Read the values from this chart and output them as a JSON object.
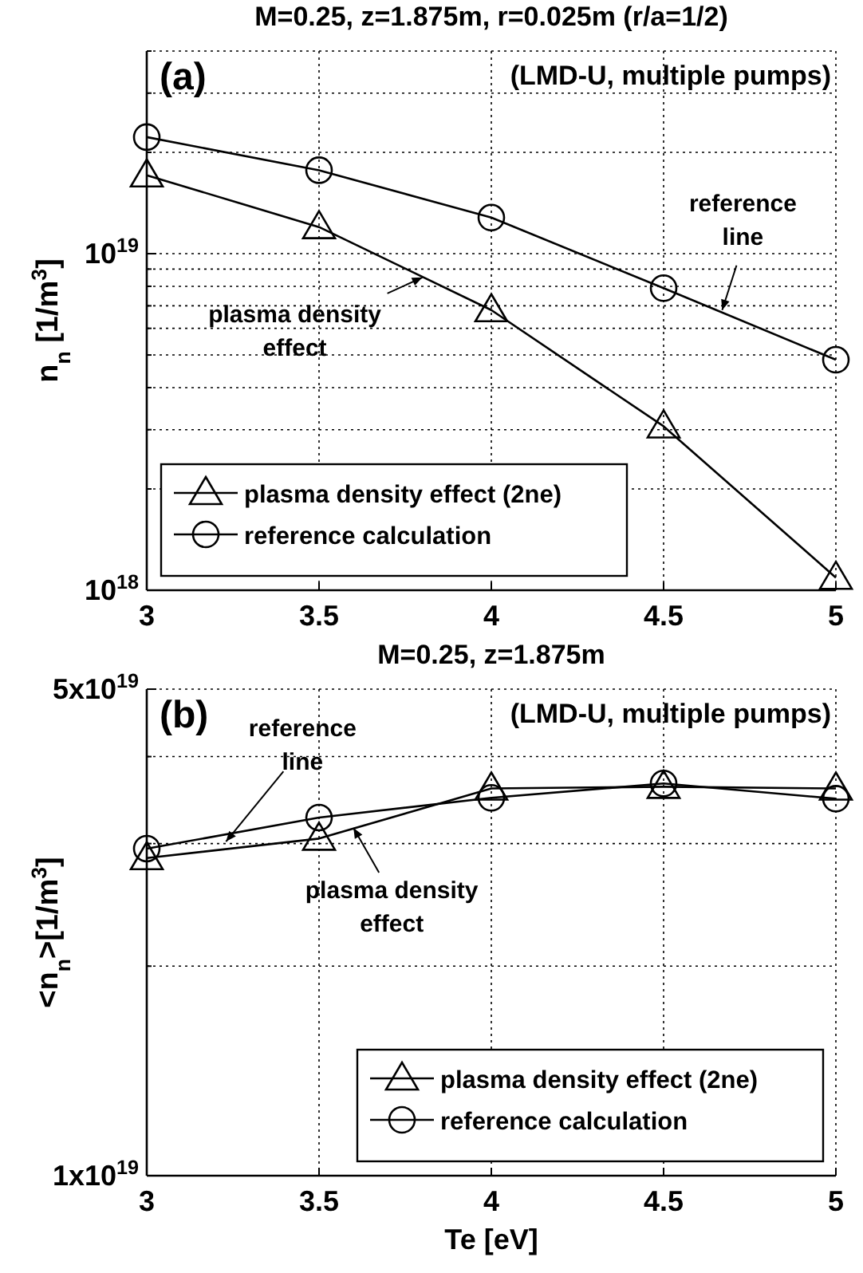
{
  "chart_data": [
    {
      "type": "line",
      "title": "M=0.25, z=1.875m, r=0.025m (r/a=1/2)",
      "subtitle": "(LMD-U, multiple pumps)",
      "ylabel": "n$_{n}$ [1/m$^{3}$]",
      "x": [
        3,
        3.5,
        4,
        4.5,
        5
      ],
      "series": [
        {
          "name": "plasma density effect (2ne)",
          "color": "#000000",
          "marker": "triangle",
          "values": [
            1.71e+19,
            1.2e+19,
            6.8e+18,
            3.07e+18,
            1.09e+18
          ]
        },
        {
          "name": "reference calculation",
          "color": "#000000",
          "marker": "circle",
          "values": [
            2.22e+19,
            1.77e+19,
            1.28e+19,
            7.9e+18,
            4.84e+18
          ]
        }
      ],
      "xlim": [
        3,
        5
      ],
      "xticks": [
        3,
        3.5,
        4,
        4.5,
        5
      ],
      "ylim": [
        1e+18,
        4e+19
      ],
      "yticks": [
        {
          "value": 1e+18,
          "label": "10$^{18}$"
        },
        {
          "value": 2e+18,
          "label": null
        },
        {
          "value": 3e+18,
          "label": null
        },
        {
          "value": 4e+18,
          "label": null
        },
        {
          "value": 5e+18,
          "label": null
        },
        {
          "value": 6e+18,
          "label": null
        },
        {
          "value": 7e+18,
          "label": null
        },
        {
          "value": 8e+18,
          "label": null
        },
        {
          "value": 9e+18,
          "label": null
        },
        {
          "value": 1e+19,
          "label": "10$^{19}$"
        },
        {
          "value": 2e+19,
          "label": null
        },
        {
          "value": 3e+19,
          "label": null
        },
        {
          "value": 4e+19,
          "label": null
        }
      ],
      "log": true,
      "grid": true,
      "legend": "bottom left",
      "annotations": [
        "(a)",
        {
          "text": "reference\nline",
          "x": 4.67,
          "y": 6.8e+18
        },
        {
          "text": "plasma density\neffect",
          "x": 3.8,
          "y": 8.5e+18
        }
      ]
    },
    {
      "type": "line",
      "title": "M=0.25, z=1.875m",
      "subtitle": "(LMD-U, multiple pumps)",
      "xlabel": "Te [eV]",
      "ylabel": "<n$_{n}$>[1/m$^{3}$]",
      "x": [
        3,
        3.5,
        4,
        4.5,
        5
      ],
      "series": [
        {
          "name": "plasma density effect (2ne)",
          "color": "#000000",
          "marker": "triangle",
          "values": [
            2.86e+19,
            3.05e+19,
            3.6e+19,
            3.62e+19,
            3.6e+19
          ]
        },
        {
          "name": "reference calculation",
          "color": "#000000",
          "marker": "circle",
          "values": [
            2.95e+19,
            3.27e+19,
            3.49e+19,
            3.66e+19,
            3.48e+19
          ]
        }
      ],
      "xlim": [
        3,
        5
      ],
      "xticks": [
        3,
        3.5,
        4,
        4.5,
        5
      ],
      "ylim": [
        1e+19,
        5e+19
      ],
      "yticks": [
        {
          "value": 1e+19,
          "label": "1x10$^{19}$"
        },
        {
          "value": 2e+19,
          "label": null
        },
        {
          "value": 3e+19,
          "label": null
        },
        {
          "value": 4e+19,
          "label": null
        },
        {
          "value": 5e+19,
          "label": "5x10$^{19}$"
        }
      ],
      "log": true,
      "grid": true,
      "legend": "bottom right",
      "annotations": [
        "(b)",
        {
          "text": "reference\nline",
          "x": 3.23,
          "y": 3.02e+19
        },
        {
          "text": "plasma density\neffect",
          "x": 3.6,
          "y": 3.16e+19
        }
      ]
    }
  ]
}
